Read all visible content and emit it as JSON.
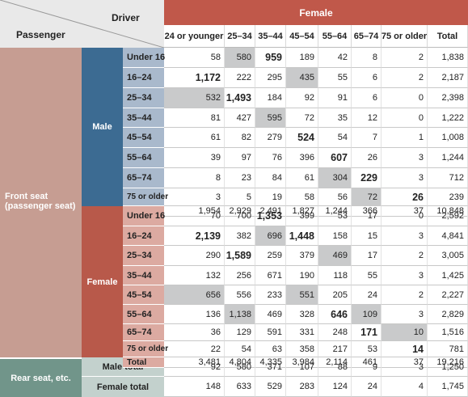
{
  "header": {
    "driver_label": "Driver",
    "passenger_label": "Passenger",
    "female_label": "Female",
    "columns": [
      "24 or younger",
      "25–34",
      "35–44",
      "45–54",
      "55–64",
      "65–74",
      "75 or older",
      "Total"
    ]
  },
  "groups": {
    "front_seat": "Front seat\n(passenger seat)",
    "male": "Male",
    "female": "Female",
    "rear_seat": "Rear seat, etc.",
    "male_total": "Male total",
    "female_total": "Female total"
  },
  "male_rows": [
    {
      "age": "Under 16",
      "values": [
        "58",
        "580",
        "959",
        "189",
        "42",
        "8",
        "2",
        "1,838"
      ]
    },
    {
      "age": "16–24",
      "values": [
        "1,172",
        "222",
        "295",
        "435",
        "55",
        "6",
        "2",
        "2,187"
      ]
    },
    {
      "age": "25–34",
      "values": [
        "532",
        "1,493",
        "184",
        "92",
        "91",
        "6",
        "0",
        "2,398"
      ]
    },
    {
      "age": "35–44",
      "values": [
        "81",
        "427",
        "595",
        "72",
        "35",
        "12",
        "0",
        "1,222"
      ]
    },
    {
      "age": "45–54",
      "values": [
        "61",
        "82",
        "279",
        "524",
        "54",
        "7",
        "1",
        "1,008"
      ]
    },
    {
      "age": "55–64",
      "values": [
        "39",
        "97",
        "76",
        "396",
        "607",
        "26",
        "3",
        "1,244"
      ]
    },
    {
      "age": "65–74",
      "values": [
        "8",
        "23",
        "84",
        "61",
        "304",
        "229",
        "3",
        "712"
      ]
    },
    {
      "age": "75 or older",
      "values": [
        "3",
        "5",
        "19",
        "58",
        "56",
        "72",
        "26",
        "239"
      ]
    },
    {
      "age": "Total",
      "values": [
        "1,954",
        "2,929",
        "2,491",
        "1,827",
        "1,244",
        "366",
        "37",
        "10,848"
      ]
    }
  ],
  "female_rows": [
    {
      "age": "Under 16",
      "values": [
        "70",
        "700",
        "1,353",
        "399",
        "53",
        "17",
        "0",
        "2,592"
      ]
    },
    {
      "age": "16–24",
      "values": [
        "2,139",
        "382",
        "696",
        "1,448",
        "158",
        "15",
        "3",
        "4,841"
      ]
    },
    {
      "age": "25–34",
      "values": [
        "290",
        "1,589",
        "259",
        "379",
        "469",
        "17",
        "2",
        "3,005"
      ]
    },
    {
      "age": "35–44",
      "values": [
        "132",
        "256",
        "671",
        "190",
        "118",
        "55",
        "3",
        "1,425"
      ]
    },
    {
      "age": "45–54",
      "values": [
        "656",
        "556",
        "233",
        "551",
        "205",
        "24",
        "2",
        "2,227"
      ]
    },
    {
      "age": "55–64",
      "values": [
        "136",
        "1,138",
        "469",
        "328",
        "646",
        "109",
        "3",
        "2,829"
      ]
    },
    {
      "age": "65–74",
      "values": [
        "36",
        "129",
        "591",
        "331",
        "248",
        "171",
        "10",
        "1,516"
      ]
    },
    {
      "age": "75 or older",
      "values": [
        "22",
        "54",
        "63",
        "358",
        "217",
        "53",
        "14",
        "781"
      ]
    },
    {
      "age": "Total",
      "values": [
        "3,481",
        "4,804",
        "4,335",
        "3,984",
        "2,114",
        "461",
        "37",
        "19,216"
      ]
    }
  ],
  "rear_rows": [
    {
      "label": "Male total",
      "values": [
        "92",
        "580",
        "371",
        "107",
        "88",
        "9",
        "3",
        "1,250"
      ]
    },
    {
      "label": "Female total",
      "values": [
        "148",
        "633",
        "529",
        "283",
        "124",
        "24",
        "4",
        "1,745"
      ]
    }
  ],
  "colors": {
    "header_red": "#c0584a",
    "front_seat_bg": "#c69d92",
    "male_group": "#3c6b92",
    "female_group": "#b8594a",
    "male_age_bg": "#a9b9cc",
    "female_age_bg": "#dcaaa1",
    "rear_bg": "#71958a",
    "rear_label_bg": "#c3d1cd",
    "highlight_grey": "#c9cacb"
  }
}
